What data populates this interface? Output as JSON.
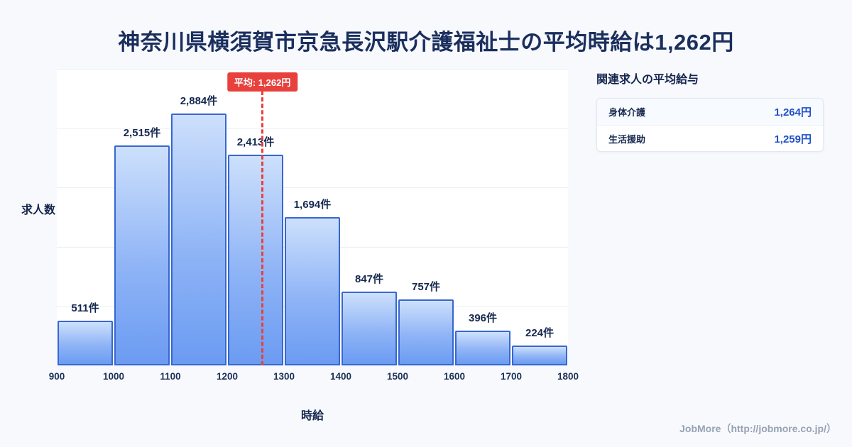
{
  "title": "神奈川県横須賀市京急長沢駅介護福祉士の平均時給は1,262円",
  "chart_data": {
    "type": "bar",
    "subtype": "histogram",
    "bin_edges": [
      900,
      1000,
      1100,
      1200,
      1300,
      1400,
      1500,
      1600,
      1700,
      1800
    ],
    "values": [
      511,
      2515,
      2884,
      2413,
      1694,
      847,
      757,
      396,
      224
    ],
    "bar_labels": [
      "511件",
      "2,515件",
      "2,884件",
      "2,413件",
      "1,694件",
      "847件",
      "757件",
      "396件",
      "224件"
    ],
    "xlabel": "時給",
    "ylabel": "求人数",
    "xlim": [
      900,
      1800
    ],
    "grid": "horizontal",
    "average": {
      "value": 1262,
      "label": "平均: 1,262円"
    },
    "colors": {
      "bar_top": "#cde0fc",
      "bar_bottom": "#6b9bf2",
      "bar_border": "#3767cf",
      "avg_line": "#e8413d",
      "title_text": "#1b2f5e"
    }
  },
  "side_panel": {
    "heading": "関連求人の平均給与",
    "rows": [
      {
        "label": "身体介護",
        "value": "1,264円"
      },
      {
        "label": "生活援助",
        "value": "1,259円"
      }
    ]
  },
  "footer": {
    "credit": "JobMore（http://jobmore.co.jp/）"
  }
}
